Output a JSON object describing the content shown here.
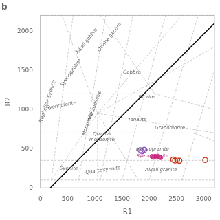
{
  "chart_data": {
    "type": "scatter",
    "title": "b",
    "x_label": "R1",
    "y_label": "R2",
    "xlim": [
      0,
      3200
    ],
    "ylim": [
      0,
      2200
    ],
    "xticks": [
      0,
      500,
      1000,
      1500,
      2000,
      2500,
      3000
    ],
    "yticks": [
      0,
      500,
      1000,
      1500,
      2000
    ],
    "grid": false,
    "legend": false,
    "series": [
      {
        "color": "#9955cc",
        "marker": "open",
        "values": [
          [
            1840,
            480
          ],
          [
            1870,
            465
          ],
          [
            1910,
            485
          ]
        ]
      },
      {
        "color": "#cc2277",
        "marker": "filled",
        "values": [
          [
            2050,
            400
          ],
          [
            2080,
            388
          ],
          [
            2105,
            402
          ],
          [
            2130,
            390
          ],
          [
            2160,
            405
          ],
          [
            2190,
            395
          ],
          [
            2210,
            385
          ]
        ]
      },
      {
        "color": "#cc3311",
        "marker": "open",
        "values": [
          [
            2440,
            360
          ],
          [
            2475,
            348
          ],
          [
            2515,
            362
          ],
          [
            2555,
            345
          ],
          [
            3030,
            355
          ]
        ]
      }
    ],
    "lines": [
      {
        "color": "#bbbbbb",
        "line_style": "dashed",
        "segments": [
          [
            [
              0,
              100
            ],
            [
              3200,
              100
            ]
          ],
          [
            [
              3200,
              100
            ],
            [
              3200,
              2200
            ]
          ],
          [
            [
              0,
              2200
            ],
            [
              3200,
              2200
            ]
          ],
          [
            [
              0,
              100
            ],
            [
              0,
              2200
            ]
          ],
          [
            [
              200,
              100
            ],
            [
              600,
              2200
            ]
          ],
          [
            [
              700,
              100
            ],
            [
              1200,
              2200
            ]
          ],
          [
            [
              1100,
              100
            ],
            [
              1700,
              2200
            ]
          ],
          [
            [
              1500,
              100
            ],
            [
              2300,
              2200
            ]
          ],
          [
            [
              2000,
              100
            ],
            [
              2900,
              2200
            ]
          ],
          [
            [
              2600,
              100
            ],
            [
              3200,
              1500
            ]
          ],
          [
            [
              0,
              350
            ],
            [
              3200,
              350
            ]
          ],
          [
            [
              0,
              700
            ],
            [
              700,
              700
            ]
          ],
          [
            [
              700,
              700
            ],
            [
              2800,
              700
            ]
          ],
          [
            [
              2800,
              700
            ],
            [
              3200,
              600
            ]
          ],
          [
            [
              200,
              1200
            ],
            [
              2000,
              1200
            ]
          ],
          [
            [
              1100,
              2200
            ],
            [
              2100,
              1200
            ]
          ],
          [
            [
              2100,
              1200
            ],
            [
              3200,
              1000
            ]
          ],
          [
            [
              1050,
              950
            ],
            [
              400,
              2200
            ]
          ],
          [
            [
              1050,
              950
            ],
            [
              1050,
              100
            ]
          ],
          [
            [
              1050,
              950
            ],
            [
              200,
              100
            ]
          ],
          [
            [
              1050,
              950
            ],
            [
              2600,
              2200
            ]
          ],
          [
            [
              1050,
              950
            ],
            [
              3200,
              1800
            ]
          ],
          [
            [
              1050,
              950
            ],
            [
              1800,
              100
            ]
          ],
          [
            [
              1050,
              950
            ],
            [
              3200,
              700
            ]
          ]
        ]
      },
      {
        "color": "black",
        "line_style": "solid",
        "segments": [
          [
            [
              180,
              0
            ],
            [
              3200,
              2100
            ]
          ]
        ]
      }
    ],
    "annotations": [
      {
        "text": "Nepheline Syenite",
        "x": 130,
        "y": 1100,
        "color": "#666666"
      },
      {
        "text": "Syenite",
        "x": 520,
        "y": 250,
        "color": "#666666"
      },
      {
        "text": "Syenodiorite",
        "x": 380,
        "y": 1050,
        "color": "#666666"
      },
      {
        "text": "Syenogabbro",
        "x": 560,
        "y": 1470,
        "color": "#666666"
      },
      {
        "text": "Alkali gabbro",
        "x": 850,
        "y": 1870,
        "color": "#666666"
      },
      {
        "text": "Olivine gabbro",
        "x": 1270,
        "y": 1920,
        "color": "#666666"
      },
      {
        "text": "Gabbro",
        "x": 1680,
        "y": 1470,
        "color": "#666666"
      },
      {
        "text": "Diorite",
        "x": 1950,
        "y": 1160,
        "color": "#666666"
      },
      {
        "text": "Monzodiorite",
        "x": 1000,
        "y": 1050,
        "color": "#666666"
      },
      {
        "text": "Monzonite",
        "x": 870,
        "y": 820,
        "color": "#666666"
      },
      {
        "text": "Quartz-\nmonzonite",
        "x": 1130,
        "y": 650,
        "color": "#666666"
      },
      {
        "text": "Tonalite",
        "x": 1780,
        "y": 870,
        "color": "#666666"
      },
      {
        "text": "Granodiorite",
        "x": 2380,
        "y": 760,
        "color": "#666666"
      },
      {
        "text": "Quartz syenite",
        "x": 1150,
        "y": 225,
        "color": "#666666"
      },
      {
        "text": "Monzogranite",
        "x": 2060,
        "y": 490,
        "color": "#666666"
      },
      {
        "text": "Syenogranite",
        "x": 2060,
        "y": 400,
        "color": "#bb4488"
      },
      {
        "text": "Alkali granite",
        "x": 2220,
        "y": 230,
        "color": "#666666"
      }
    ]
  }
}
